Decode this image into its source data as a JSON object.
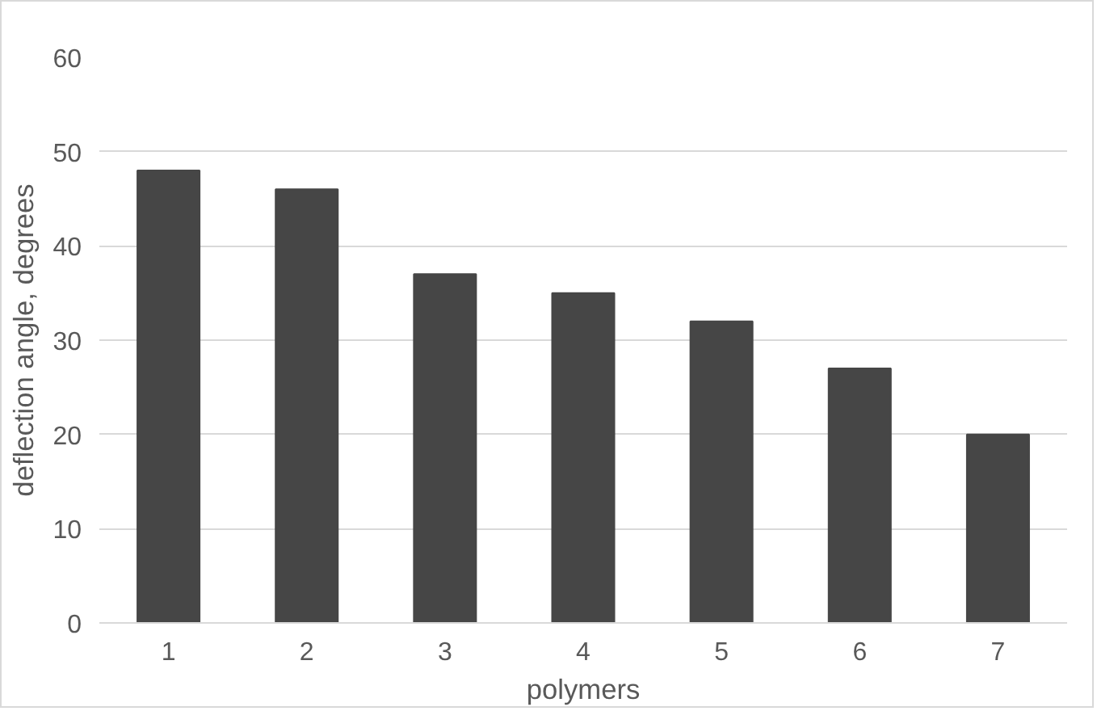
{
  "chart_data": {
    "type": "bar",
    "xlabel": "polymers",
    "ylabel": "deflection angle, degrees",
    "categories": [
      "1",
      "2",
      "3",
      "4",
      "5",
      "6",
      "7"
    ],
    "values": [
      48,
      46,
      37,
      35,
      32,
      27,
      20
    ],
    "color": "#464646",
    "ylim": [
      0,
      60
    ],
    "yticks": [
      0,
      10,
      20,
      30,
      40,
      50,
      60
    ],
    "grid": "y"
  }
}
